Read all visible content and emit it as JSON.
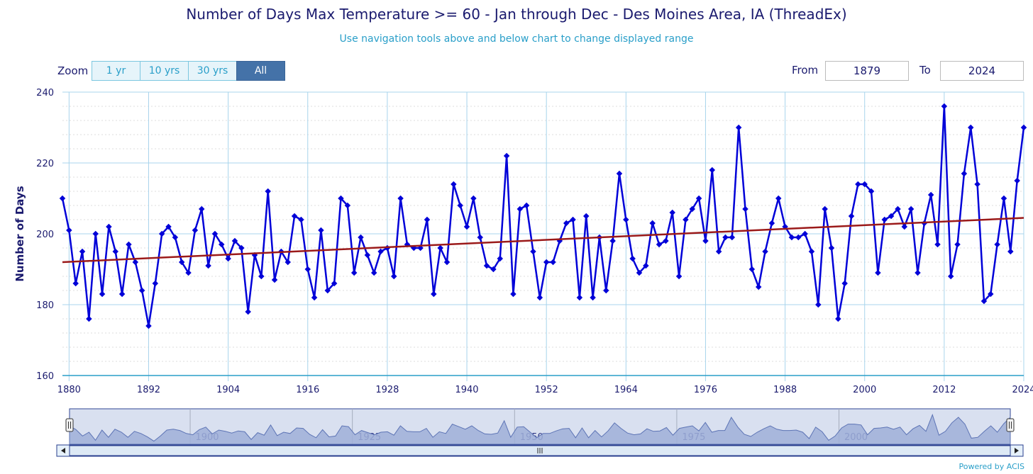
{
  "title": "Number of Days Max Temperature >= 60 - Jan through Dec - Des Moines Area, IA (ThreadEx)",
  "subtitle": "Use navigation tools above and below chart to change displayed range",
  "zoom": {
    "label": "Zoom",
    "buttons": [
      "1 yr",
      "10 yrs",
      "30 yrs",
      "All"
    ],
    "active": "All"
  },
  "range": {
    "from_label": "From",
    "from_value": "1879",
    "to_label": "To",
    "to_value": "2024"
  },
  "credit": "Powered by ACIS",
  "colors": {
    "series": "#0000d8",
    "trend": "#9b1a1a",
    "grid": "#a8d4ec",
    "navigator_fill": "#b3c0e0",
    "navigator_line": "#5a6fb0"
  },
  "chart_data": {
    "type": "line",
    "title": "Number of Days Max Temperature >= 60 - Jan through Dec - Des Moines Area, IA (ThreadEx)",
    "ylabel": "Number of Days",
    "xlabel": "",
    "ylim": [
      160,
      240
    ],
    "xlim": [
      1879,
      2024
    ],
    "xticks": [
      1880,
      1892,
      1904,
      1916,
      1928,
      1940,
      1952,
      1964,
      1976,
      1988,
      2000,
      2012,
      2024
    ],
    "yticks": [
      160,
      180,
      200,
      220,
      240
    ],
    "grid": true,
    "legend": "none",
    "navigator_ticks": [
      1900,
      1925,
      1950,
      1975,
      2000
    ],
    "x_start": 1879,
    "series": [
      {
        "values": [
          210,
          201,
          186,
          195,
          176,
          200,
          183,
          202,
          195,
          183,
          197,
          192,
          184,
          174,
          186,
          200,
          202,
          199,
          192,
          189,
          201,
          207,
          191,
          200,
          197,
          193,
          198,
          196,
          178,
          194,
          188,
          212,
          187,
          195,
          192,
          205,
          204,
          190,
          182,
          201,
          184,
          186,
          210,
          208,
          189,
          199,
          194,
          189,
          195,
          196,
          188,
          210,
          197,
          196,
          196,
          204,
          183,
          196,
          192,
          214,
          208,
          202,
          210,
          199,
          191,
          190,
          193,
          222,
          183,
          207,
          208,
          195,
          182,
          192,
          192,
          198,
          203,
          204,
          182,
          205,
          182,
          199,
          184,
          198,
          217,
          204,
          193,
          189,
          191,
          203,
          197,
          198,
          206,
          188,
          204,
          207,
          210,
          198,
          218,
          195,
          199,
          199,
          230,
          207,
          190,
          185,
          195,
          203,
          210,
          202,
          199,
          199,
          200,
          195,
          180,
          207,
          196,
          176,
          186,
          205,
          214,
          214,
          212,
          189,
          204,
          205,
          207,
          202,
          207,
          189,
          203,
          211,
          197,
          236,
          188,
          197,
          217,
          230,
          214,
          181,
          183,
          197,
          210,
          195,
          215,
          230
        ]
      },
      {
        "name": "Trend",
        "x": [
          1879,
          2024
        ],
        "values": [
          192.0,
          204.5
        ]
      }
    ]
  }
}
